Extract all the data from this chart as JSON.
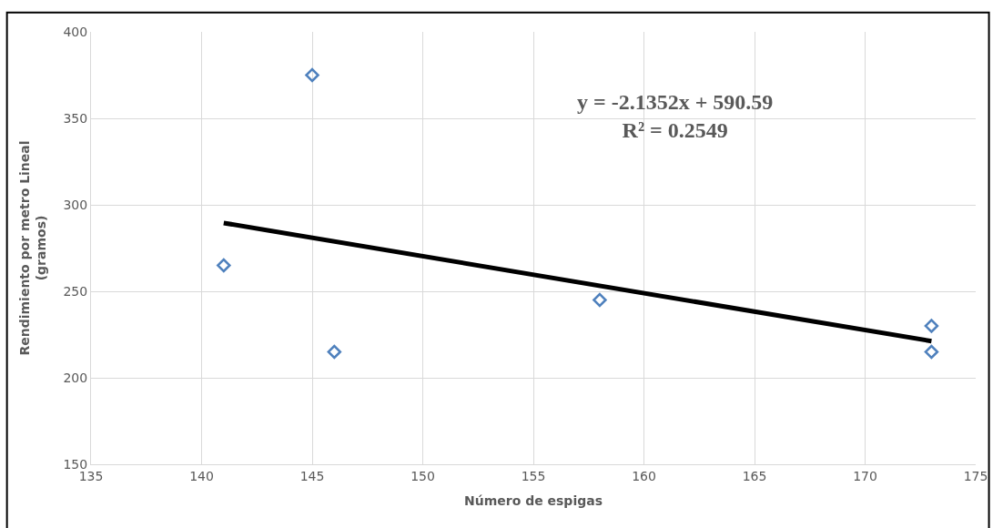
{
  "chart_data": {
    "type": "scatter",
    "xlabel": "Número de espigas",
    "ylabel": "Rendimiento por metro Lineal\n(gramos)",
    "xlim": [
      135,
      175
    ],
    "xticks": [
      135,
      140,
      145,
      150,
      155,
      160,
      165,
      170,
      175
    ],
    "ylim": [
      150,
      400
    ],
    "yticks": [
      150,
      200,
      250,
      300,
      350,
      400
    ],
    "grid": true,
    "marker": "diamond",
    "series": [
      {
        "color": "#4f81bd",
        "x": [
          141,
          145,
          146,
          158,
          173,
          173
        ],
        "values": [
          265,
          375,
          215,
          245,
          230,
          215
        ]
      },
      {
        "type": "line",
        "color": "#000000",
        "line_style": "solid",
        "marker": "none",
        "x": [
          141,
          173
        ],
        "values": [
          289.5,
          221.2
        ]
      }
    ],
    "annotations": [
      "y = -2.1352x + 590.59\nR² = 0.2549"
    ]
  }
}
